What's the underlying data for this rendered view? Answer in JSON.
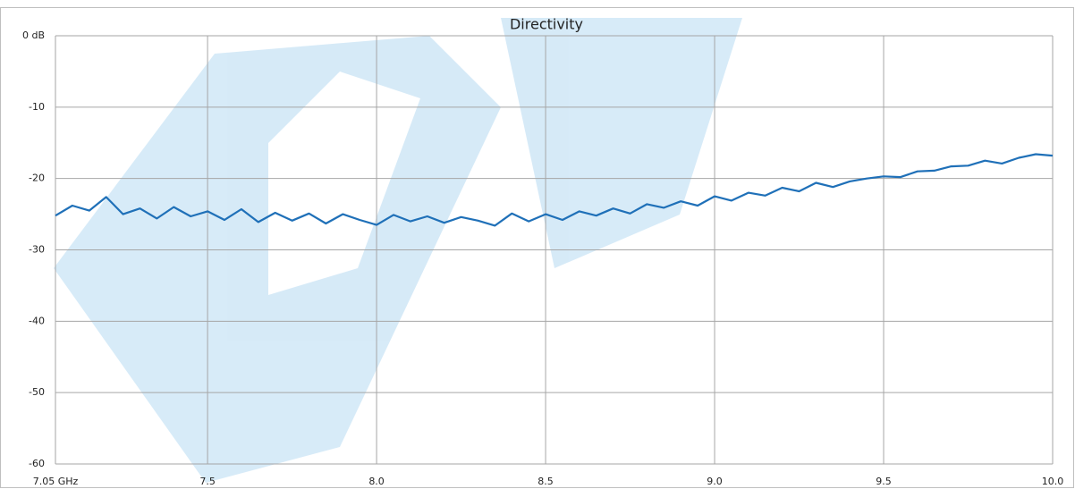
{
  "chart_data": {
    "type": "line",
    "title": "Directivity",
    "x": [
      7.05,
      7.1,
      7.15,
      7.2,
      7.25,
      7.3,
      7.35,
      7.4,
      7.45,
      7.5,
      7.55,
      7.6,
      7.65,
      7.7,
      7.75,
      7.8,
      7.85,
      7.9,
      7.95,
      8.0,
      8.05,
      8.1,
      8.15,
      8.2,
      8.25,
      8.3,
      8.35,
      8.4,
      8.45,
      8.5,
      8.55,
      8.6,
      8.65,
      8.7,
      8.75,
      8.8,
      8.85,
      8.9,
      8.95,
      9.0,
      9.05,
      9.1,
      9.15,
      9.2,
      9.25,
      9.3,
      9.35,
      9.4,
      9.45,
      9.5,
      9.55,
      9.6,
      9.65,
      9.7,
      9.75,
      9.8,
      9.85,
      9.9,
      9.95,
      10.0
    ],
    "values": [
      -25.2,
      -23.8,
      -24.5,
      -22.6,
      -25.0,
      -24.2,
      -25.6,
      -24.0,
      -25.3,
      -24.6,
      -25.8,
      -24.3,
      -26.1,
      -24.8,
      -25.9,
      -24.9,
      -26.3,
      -25.0,
      -25.8,
      -26.5,
      -25.1,
      -26.0,
      -25.3,
      -26.2,
      -25.4,
      -25.9,
      -26.6,
      -24.9,
      -26.0,
      -25.0,
      -25.8,
      -24.6,
      -25.2,
      -24.2,
      -24.9,
      -23.6,
      -24.1,
      -23.2,
      -23.8,
      -22.5,
      -23.1,
      -22.0,
      -22.4,
      -21.3,
      -21.8,
      -20.6,
      -21.2,
      -20.4,
      -20.0,
      -19.7,
      -19.8,
      -19.0,
      -18.9,
      -18.3,
      -18.2,
      -17.5,
      -17.9,
      -17.1,
      -16.6,
      -16.8
    ],
    "color": "#1f70b8",
    "xlim": [
      7.05,
      10.0
    ],
    "xticks": [
      {
        "value": 7.05,
        "label": "7.05 GHz"
      },
      {
        "value": 7.5,
        "label": "7.5"
      },
      {
        "value": 8.0,
        "label": "8.0"
      },
      {
        "value": 8.5,
        "label": "8.5"
      },
      {
        "value": 9.0,
        "label": "9.0"
      },
      {
        "value": 9.5,
        "label": "9.5"
      },
      {
        "value": 10.0,
        "label": "10.0"
      }
    ],
    "ylim": [
      -60,
      0
    ],
    "yticks": [
      {
        "value": 0,
        "label": "0 dB"
      },
      -10,
      -20,
      -30,
      -40,
      -50,
      -60
    ],
    "grid": true
  }
}
